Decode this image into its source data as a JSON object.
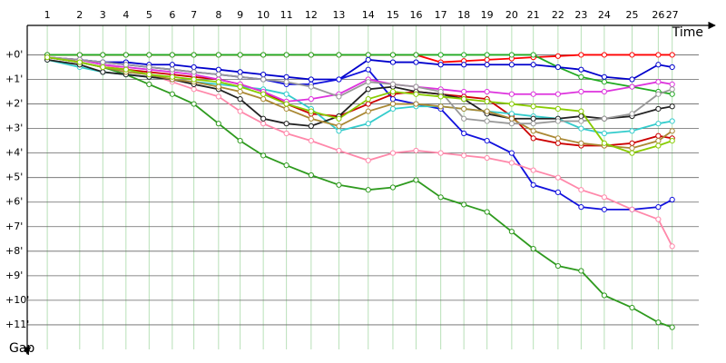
{
  "chart_data": {
    "type": "line",
    "x_label": "Time",
    "y_label": "Gap",
    "xlim": [
      0,
      44.7
    ],
    "ylim": [
      -1.2,
      12
    ],
    "y_inverted": true,
    "grid": true,
    "xticks": [
      {
        "value": 1.3,
        "label": "1"
      },
      {
        "value": 3.4,
        "label": "2"
      },
      {
        "value": 4.9,
        "label": "3"
      },
      {
        "value": 6.4,
        "label": "4"
      },
      {
        "value": 7.9,
        "label": "5"
      },
      {
        "value": 9.4,
        "label": "6"
      },
      {
        "value": 10.8,
        "label": "7"
      },
      {
        "value": 12.4,
        "label": "8"
      },
      {
        "value": 13.8,
        "label": "9"
      },
      {
        "value": 15.3,
        "label": "10"
      },
      {
        "value": 16.8,
        "label": "11"
      },
      {
        "value": 18.4,
        "label": "12"
      },
      {
        "value": 20.2,
        "label": "13"
      },
      {
        "value": 22.1,
        "label": "14"
      },
      {
        "value": 23.7,
        "label": "15"
      },
      {
        "value": 25.2,
        "label": "16"
      },
      {
        "value": 26.8,
        "label": "17"
      },
      {
        "value": 28.3,
        "label": "18"
      },
      {
        "value": 29.8,
        "label": "19"
      },
      {
        "value": 31.4,
        "label": "20"
      },
      {
        "value": 32.8,
        "label": "21"
      },
      {
        "value": 34.4,
        "label": "22"
      },
      {
        "value": 35.9,
        "label": "23"
      },
      {
        "value": 37.4,
        "label": "24"
      },
      {
        "value": 39.2,
        "label": "25"
      },
      {
        "value": 40.9,
        "label": "26"
      },
      {
        "value": 41.8,
        "label": "27"
      }
    ],
    "yticks": [
      {
        "value": 0,
        "label": "+0'"
      },
      {
        "value": 1,
        "label": "+1'"
      },
      {
        "value": 2,
        "label": "+2'"
      },
      {
        "value": 3,
        "label": "+3'"
      },
      {
        "value": 4,
        "label": "+4'"
      },
      {
        "value": 5,
        "label": "+5'"
      },
      {
        "value": 6,
        "label": "+6'"
      },
      {
        "value": 7,
        "label": "+7'"
      },
      {
        "value": 8,
        "label": "+8'"
      },
      {
        "value": 9,
        "label": "+9'"
      },
      {
        "value": 10,
        "label": "+10'"
      },
      {
        "value": 11,
        "label": "+11'"
      }
    ],
    "x": [
      1.3,
      3.4,
      4.9,
      6.4,
      7.9,
      9.4,
      10.8,
      12.4,
      13.8,
      15.3,
      16.8,
      18.4,
      20.2,
      22.1,
      23.7,
      25.2,
      26.8,
      28.3,
      29.8,
      31.4,
      32.8,
      34.4,
      35.9,
      37.4,
      39.2,
      40.9,
      41.8
    ],
    "series": [
      {
        "color": "#ff0000",
        "values": [
          0,
          0,
          0,
          0,
          0,
          0,
          0,
          0,
          0,
          0,
          0,
          0,
          0,
          0,
          0,
          0,
          0.3,
          0.25,
          0.2,
          0.15,
          0.1,
          0.05,
          0,
          0,
          0,
          0,
          0
        ]
      },
      {
        "color": "#22aa22",
        "values": [
          0,
          0,
          0,
          0,
          0,
          0,
          0,
          0,
          0,
          0,
          0,
          0,
          0,
          0,
          0,
          0,
          0,
          0,
          0,
          0,
          0,
          0.5,
          0.9,
          1.1,
          1.3,
          1.5,
          1.6
        ]
      },
      {
        "color": "#0000cc",
        "values": [
          0.1,
          0.2,
          0.3,
          0.3,
          0.4,
          0.4,
          0.5,
          0.6,
          0.7,
          0.8,
          0.9,
          1.0,
          1.0,
          0.2,
          0.3,
          0.3,
          0.4,
          0.4,
          0.4,
          0.4,
          0.4,
          0.5,
          0.6,
          0.9,
          1.0,
          0.4,
          0.5
        ]
      },
      {
        "color": "#1111dd",
        "values": [
          0.1,
          0.2,
          0.3,
          0.4,
          0.5,
          0.6,
          0.7,
          0.8,
          0.9,
          1.0,
          1.2,
          1.2,
          1.0,
          0.6,
          1.8,
          2.0,
          2.2,
          3.2,
          3.5,
          4.0,
          5.3,
          5.6,
          6.2,
          6.3,
          6.3,
          6.2,
          5.9
        ]
      },
      {
        "color": "#2e9a1e",
        "values": [
          0.1,
          0.3,
          0.5,
          0.8,
          1.2,
          1.6,
          2.0,
          2.8,
          3.5,
          4.1,
          4.5,
          4.9,
          5.3,
          5.5,
          5.4,
          5.1,
          5.8,
          6.1,
          6.4,
          7.2,
          7.9,
          8.6,
          8.8,
          9.8,
          10.3,
          10.9,
          11.1
        ]
      },
      {
        "color": "#ff88aa",
        "values": [
          0.1,
          0.2,
          0.4,
          0.6,
          0.8,
          1.1,
          1.4,
          1.7,
          2.3,
          2.8,
          3.2,
          3.5,
          3.9,
          4.3,
          4.0,
          3.9,
          4.0,
          4.1,
          4.2,
          4.4,
          4.7,
          5.0,
          5.5,
          5.8,
          6.3,
          6.7,
          7.8
        ]
      },
      {
        "color": "#cc0000",
        "values": [
          0.1,
          0.3,
          0.5,
          0.6,
          0.7,
          0.8,
          0.9,
          1.0,
          1.2,
          1.5,
          2.0,
          2.4,
          2.5,
          2.0,
          1.6,
          1.5,
          1.6,
          1.7,
          1.8,
          2.5,
          3.4,
          3.6,
          3.7,
          3.7,
          3.6,
          3.3,
          3.4
        ]
      },
      {
        "color": "#33cccc",
        "values": [
          0.2,
          0.5,
          0.7,
          0.8,
          0.9,
          1.0,
          1.1,
          1.2,
          1.3,
          1.4,
          1.6,
          2.2,
          3.1,
          2.8,
          2.2,
          2.1,
          2.1,
          2.2,
          2.3,
          2.4,
          2.5,
          2.6,
          3.0,
          3.2,
          3.1,
          2.8,
          2.7
        ]
      },
      {
        "color": "#222222",
        "values": [
          0.2,
          0.4,
          0.7,
          0.8,
          0.9,
          1.0,
          1.2,
          1.4,
          1.8,
          2.6,
          2.8,
          2.9,
          2.5,
          1.4,
          1.3,
          1.5,
          1.6,
          1.8,
          2.4,
          2.6,
          2.6,
          2.6,
          2.5,
          2.6,
          2.5,
          2.2,
          2.1
        ]
      },
      {
        "color": "#aa8833",
        "values": [
          0.1,
          0.3,
          0.5,
          0.7,
          0.8,
          1.0,
          1.1,
          1.3,
          1.5,
          1.8,
          2.2,
          2.6,
          2.9,
          2.3,
          2.0,
          2.0,
          2.1,
          2.2,
          2.3,
          2.6,
          3.1,
          3.4,
          3.6,
          3.7,
          3.8,
          3.5,
          3.1
        ]
      },
      {
        "color": "#dd33dd",
        "values": [
          0.1,
          0.2,
          0.4,
          0.5,
          0.6,
          0.7,
          0.8,
          1.0,
          1.2,
          1.5,
          1.9,
          1.8,
          1.6,
          1.0,
          1.2,
          1.3,
          1.4,
          1.5,
          1.5,
          1.6,
          1.6,
          1.6,
          1.5,
          1.5,
          1.3,
          1.1,
          1.2
        ]
      },
      {
        "color": "#999999",
        "values": [
          0.1,
          0.2,
          0.3,
          0.4,
          0.5,
          0.6,
          0.7,
          0.8,
          0.9,
          1.0,
          1.1,
          1.3,
          1.7,
          1.1,
          1.2,
          1.3,
          1.5,
          2.6,
          2.7,
          2.8,
          2.8,
          2.7,
          2.7,
          2.6,
          2.4,
          1.6,
          1.4
        ]
      },
      {
        "color": "#88cc00",
        "values": [
          0.1,
          0.3,
          0.5,
          0.6,
          0.8,
          0.9,
          1.0,
          1.1,
          1.3,
          1.6,
          2.0,
          2.3,
          2.6,
          1.8,
          1.5,
          1.6,
          1.7,
          1.8,
          1.9,
          2.0,
          2.1,
          2.2,
          2.3,
          3.6,
          4.0,
          3.7,
          3.5
        ]
      }
    ]
  }
}
